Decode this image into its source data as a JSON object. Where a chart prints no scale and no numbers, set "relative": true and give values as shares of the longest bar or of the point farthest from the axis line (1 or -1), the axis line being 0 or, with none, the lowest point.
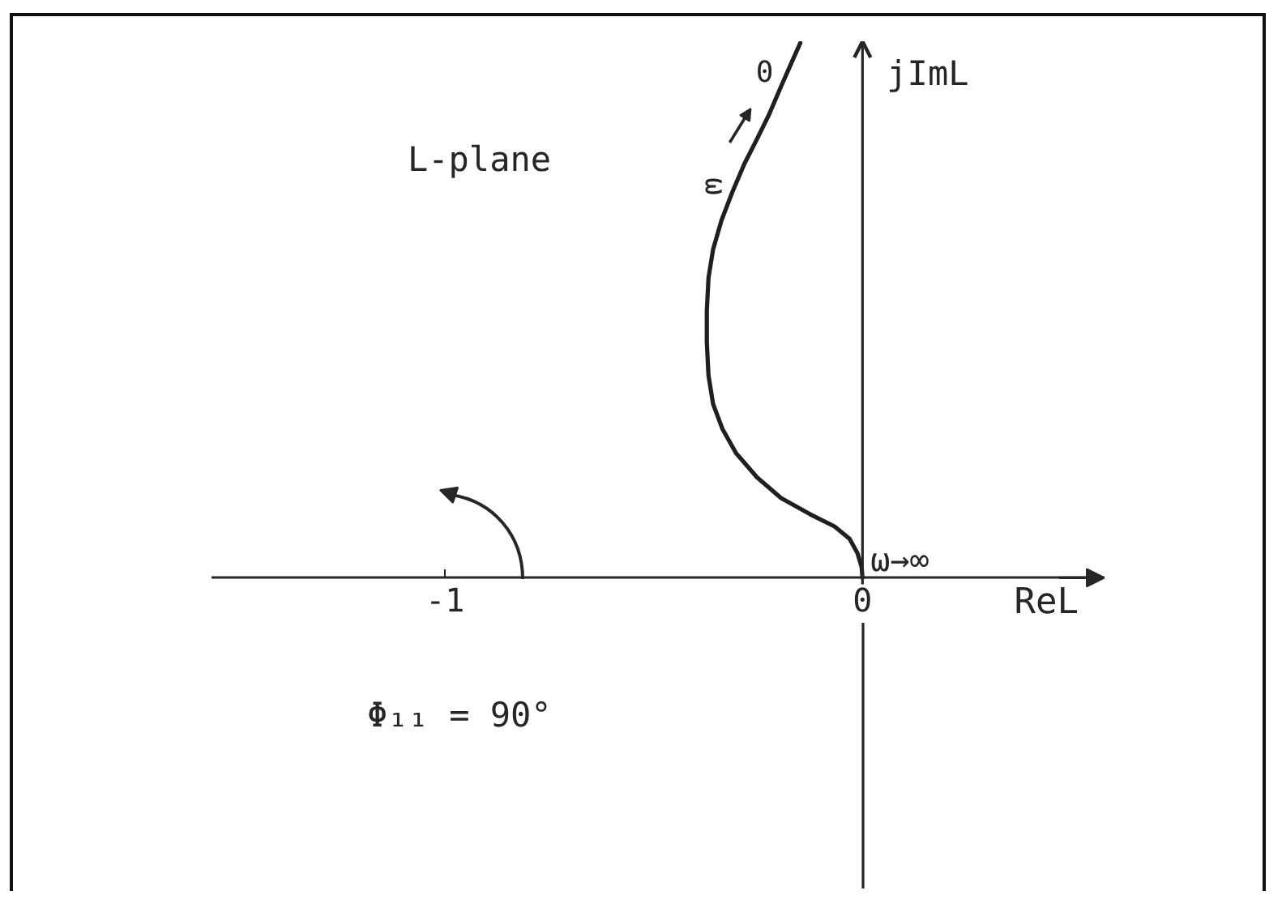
{
  "chart_data": {
    "type": "line",
    "xlabel": "ReL",
    "ylabel": "jImL",
    "relative": true,
    "tick_labels": "x",
    "xlim": [
      -1.56,
      0.58
    ],
    "xticks": [
      -1,
      0
    ],
    "x": [
      -0.149,
      -0.169,
      -0.195,
      -0.224,
      -0.253,
      -0.283,
      -0.312,
      -0.338,
      -0.358,
      -0.369,
      -0.373,
      -0.373,
      -0.369,
      -0.358,
      -0.336,
      -0.303,
      -0.253,
      -0.195,
      -0.126,
      -0.067,
      -0.031,
      -0.012,
      -0.002,
      0.0
    ],
    "series": [
      {
        "color": "#1f1f1f",
        "values": [
          1.0,
          0.965,
          0.919,
          0.866,
          0.82,
          0.774,
          0.721,
          0.668,
          0.614,
          0.561,
          0.5,
          0.439,
          0.378,
          0.325,
          0.279,
          0.233,
          0.188,
          0.149,
          0.119,
          0.096,
          0.073,
          0.046,
          0.02,
          0.0
        ]
      }
    ],
    "annotations": [
      "L-plane",
      {
        "text": "0",
        "x": -0.149,
        "y": 1.0
      },
      {
        "text": "ω",
        "x": -0.295,
        "y": 0.738
      },
      {
        "text": "ω→∞",
        "x": 0,
        "y": 0
      },
      "Φ₁₁ = 90°"
    ]
  }
}
